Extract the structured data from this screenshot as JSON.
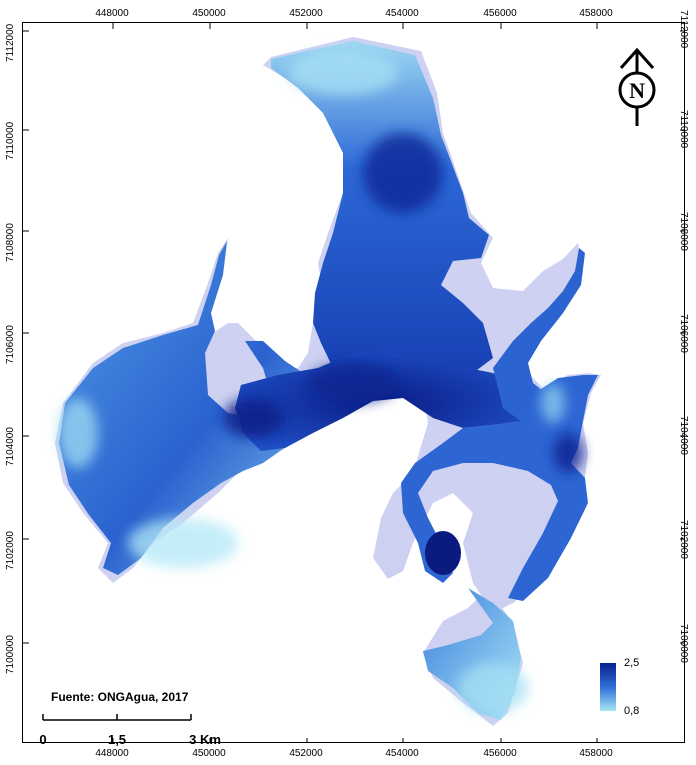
{
  "map": {
    "source": "Fuente: ONGAgua, 2017",
    "x_ticks": [
      "448000",
      "450000",
      "452000",
      "454000",
      "456000",
      "458000"
    ],
    "y_ticks": [
      "7112000",
      "7110000",
      "7108000",
      "7106000",
      "7104000",
      "7102000",
      "7100000"
    ],
    "scale_bar": {
      "labels": [
        "0",
        "1,5",
        "3 Km"
      ]
    },
    "north_arrow": {
      "letter": "N"
    },
    "legend": {
      "max": "2,5",
      "min": "0,8",
      "color_high": "#0a1f8f",
      "color_low": "#a8e6f5"
    },
    "colors": {
      "deep": "#0b2a9a",
      "mid": "#2f6fd8",
      "light": "#8fd4f0"
    }
  }
}
